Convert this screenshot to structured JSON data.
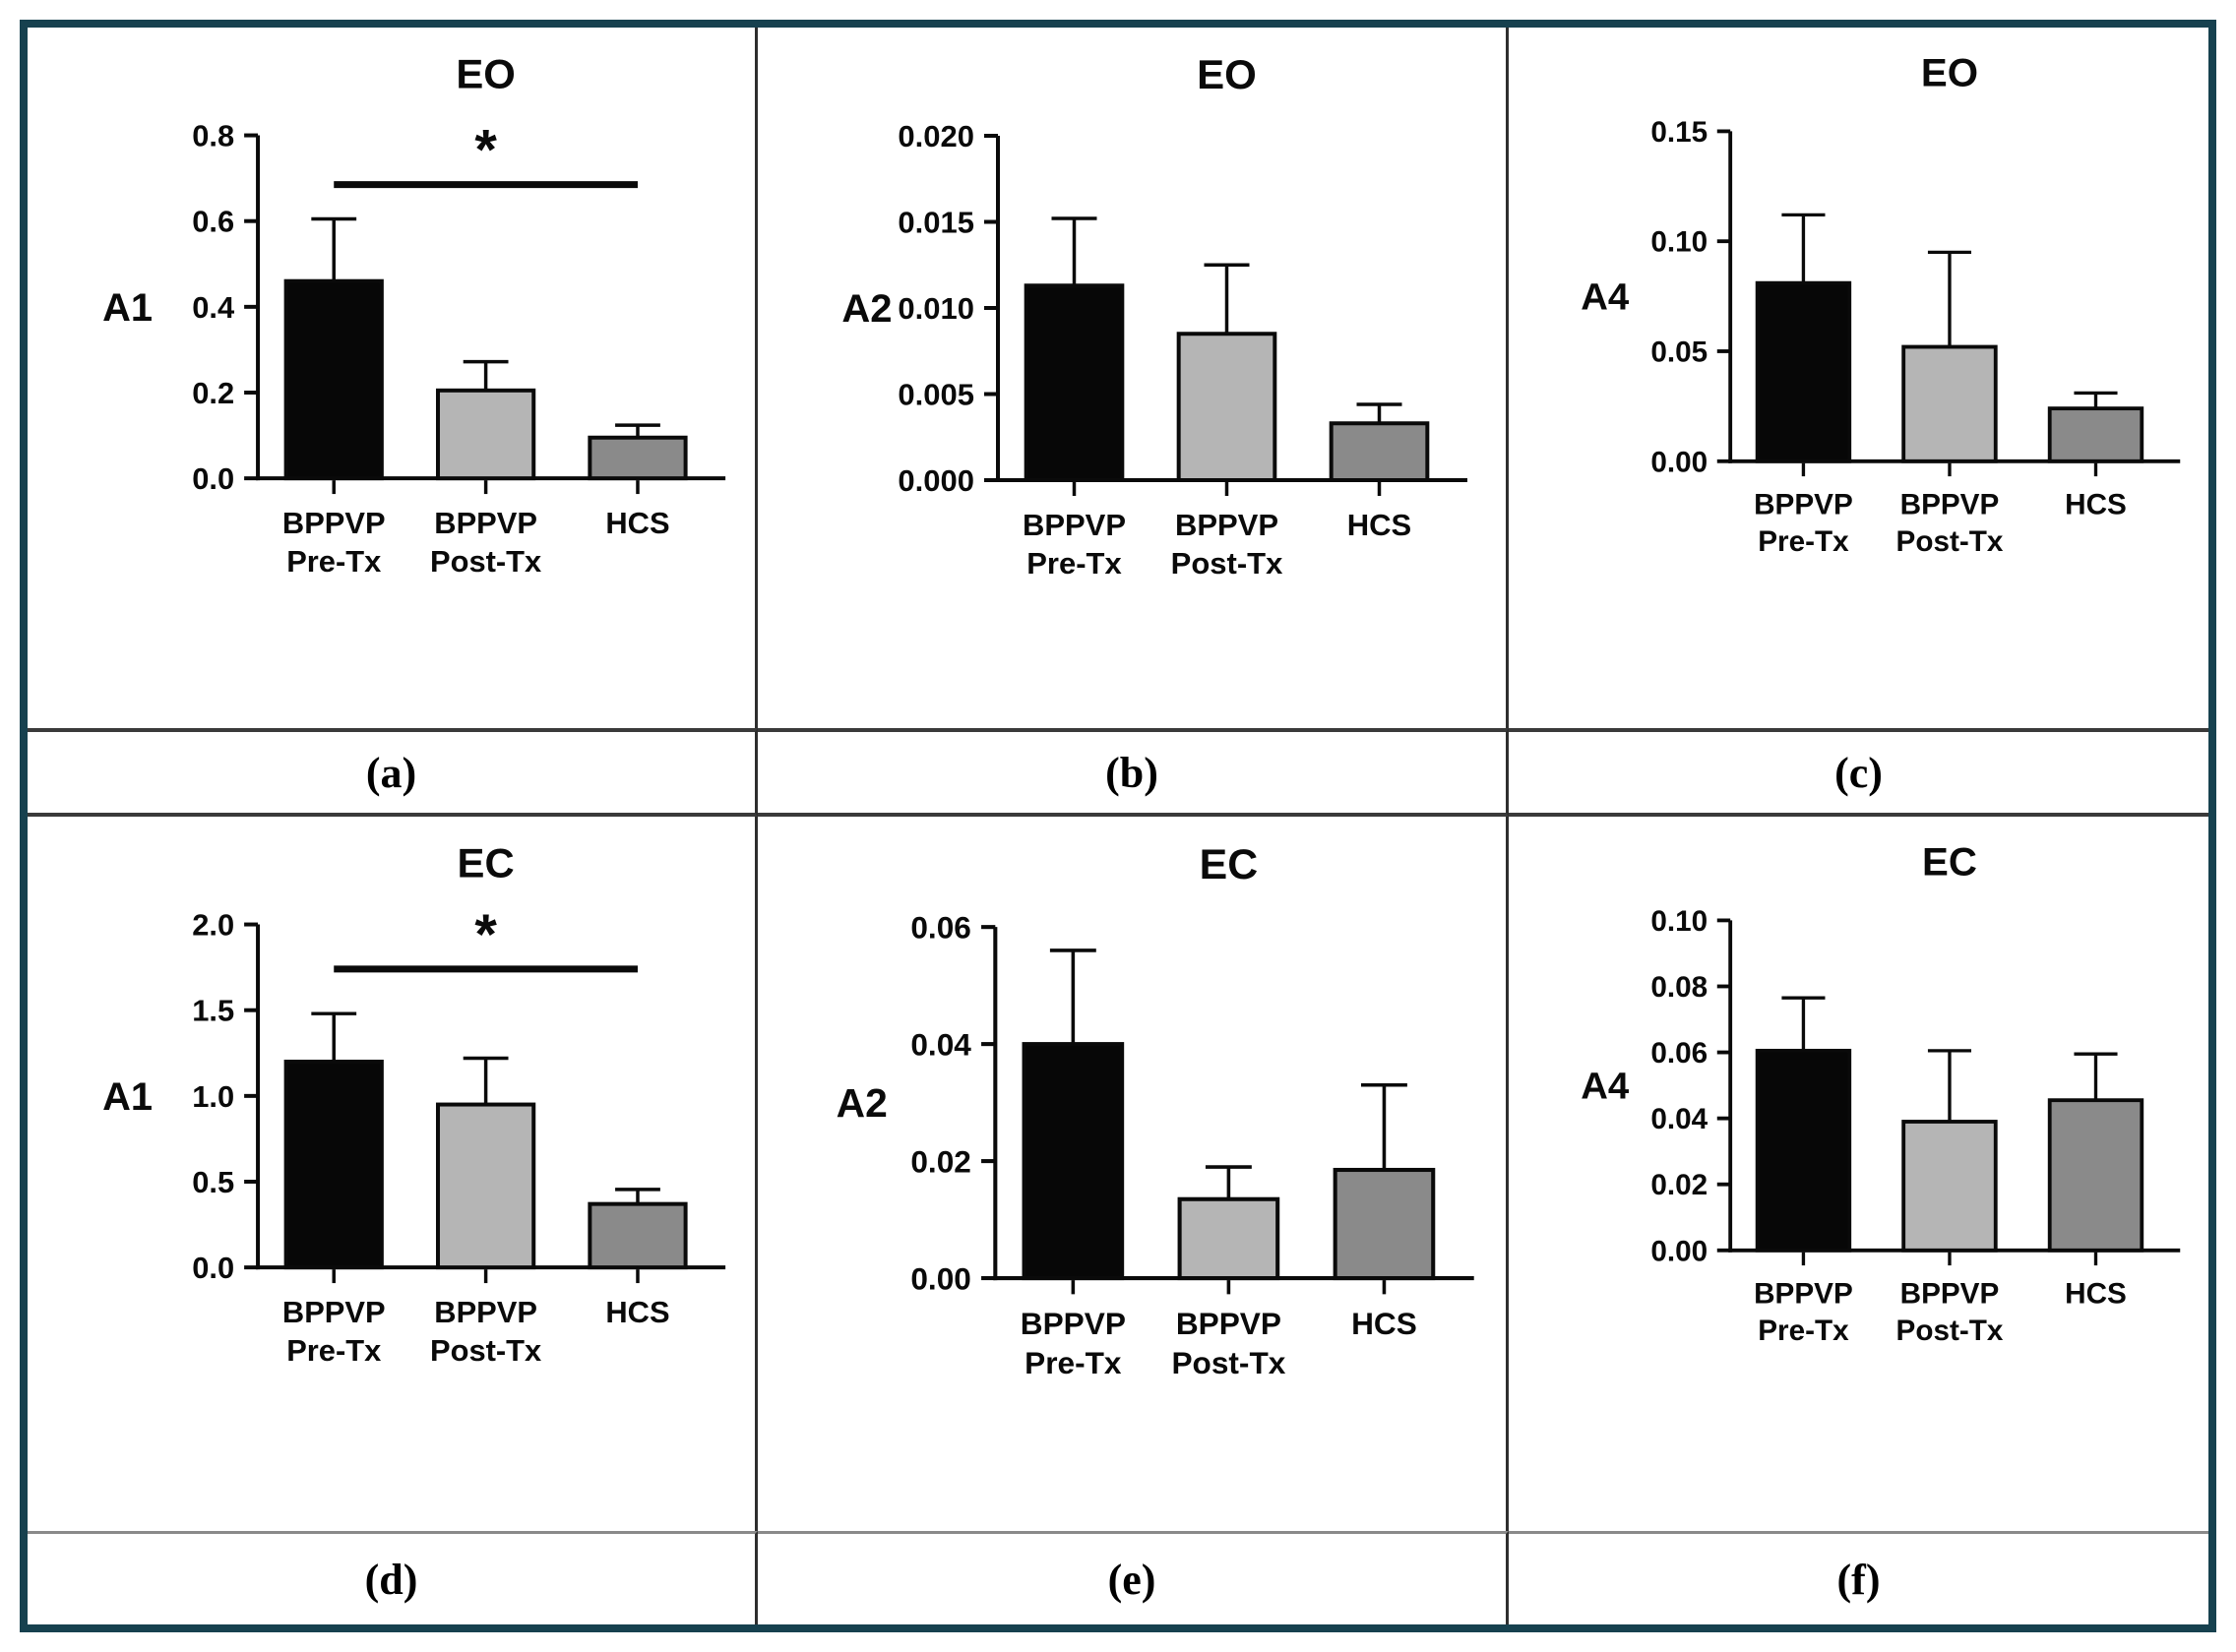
{
  "figure": {
    "border_color": "#17414f",
    "separator_color": "#3a3a3a",
    "axis_color": "#0a0a0a",
    "bar_colors": {
      "bppvp_pre": "#070707",
      "bppvp_post": "#b5b5b5",
      "hcs": "#8a8a8a"
    }
  },
  "charts": [
    {
      "panel_label": "(a)",
      "title": "EO",
      "ylabel": "A1",
      "type": "bar",
      "ylim": [
        0,
        0.8
      ],
      "yticks": [
        {
          "value": 0.0,
          "label": "0.0"
        },
        {
          "value": 0.2,
          "label": "0.2"
        },
        {
          "value": 0.4,
          "label": "0.4"
        },
        {
          "value": 0.6,
          "label": "0.6"
        },
        {
          "value": 0.8,
          "label": "0.8"
        }
      ],
      "categories": [
        [
          "BPPVP",
          "Pre-Tx"
        ],
        [
          "BPPVP",
          "Post-Tx"
        ],
        [
          "HCS"
        ]
      ],
      "bars": [
        {
          "name": "BPPVP Pre-Tx",
          "mean": 0.46,
          "err_top": 0.605,
          "color": "#070707"
        },
        {
          "name": "BPPVP Post-Tx",
          "mean": 0.205,
          "err_top": 0.272,
          "color": "#b5b5b5"
        },
        {
          "name": "HCS",
          "mean": 0.095,
          "err_top": 0.124,
          "color": "#8a8a8a"
        }
      ],
      "significance": {
        "from": 0,
        "to": 2,
        "y": 0.685,
        "label": "*"
      }
    },
    {
      "panel_label": "(b)",
      "title": "EO",
      "ylabel": "A2",
      "type": "bar",
      "ylim": [
        0,
        0.02
      ],
      "yticks": [
        {
          "value": 0.0,
          "label": "0.000"
        },
        {
          "value": 0.005,
          "label": "0.005"
        },
        {
          "value": 0.01,
          "label": "0.010"
        },
        {
          "value": 0.015,
          "label": "0.015"
        },
        {
          "value": 0.02,
          "label": "0.020"
        }
      ],
      "categories": [
        [
          "BPPVP",
          "Pre-Tx"
        ],
        [
          "BPPVP",
          "Post-Tx"
        ],
        [
          "HCS"
        ]
      ],
      "bars": [
        {
          "name": "BPPVP Pre-Tx",
          "mean": 0.0113,
          "err_top": 0.0152,
          "color": "#070707"
        },
        {
          "name": "BPPVP Post-Tx",
          "mean": 0.0085,
          "err_top": 0.0125,
          "color": "#b5b5b5"
        },
        {
          "name": "HCS",
          "mean": 0.0033,
          "err_top": 0.0044,
          "color": "#8a8a8a"
        }
      ],
      "significance": null
    },
    {
      "panel_label": "(c)",
      "title": "EO",
      "ylabel": "A4",
      "type": "bar",
      "ylim": [
        0,
        0.15
      ],
      "yticks": [
        {
          "value": 0.0,
          "label": "0.00"
        },
        {
          "value": 0.05,
          "label": "0.05"
        },
        {
          "value": 0.1,
          "label": "0.10"
        },
        {
          "value": 0.15,
          "label": "0.15"
        }
      ],
      "categories": [
        [
          "BPPVP",
          "Pre-Tx"
        ],
        [
          "BPPVP",
          "Post-Tx"
        ],
        [
          "HCS"
        ]
      ],
      "bars": [
        {
          "name": "BPPVP Pre-Tx",
          "mean": 0.081,
          "err_top": 0.112,
          "color": "#070707"
        },
        {
          "name": "BPPVP Post-Tx",
          "mean": 0.052,
          "err_top": 0.095,
          "color": "#b5b5b5"
        },
        {
          "name": "HCS",
          "mean": 0.024,
          "err_top": 0.031,
          "color": "#8a8a8a"
        }
      ],
      "significance": null
    },
    {
      "panel_label": "(d)",
      "title": "EC",
      "ylabel": "A1",
      "type": "bar",
      "ylim": [
        0,
        2.0
      ],
      "yticks": [
        {
          "value": 0.0,
          "label": "0.0"
        },
        {
          "value": 0.5,
          "label": "0.5"
        },
        {
          "value": 1.0,
          "label": "1.0"
        },
        {
          "value": 1.5,
          "label": "1.5"
        },
        {
          "value": 2.0,
          "label": "2.0"
        }
      ],
      "categories": [
        [
          "BPPVP",
          "Pre-Tx"
        ],
        [
          "BPPVP",
          "Post-Tx"
        ],
        [
          "HCS"
        ]
      ],
      "bars": [
        {
          "name": "BPPVP Pre-Tx",
          "mean": 1.2,
          "err_top": 1.48,
          "color": "#070707"
        },
        {
          "name": "BPPVP Post-Tx",
          "mean": 0.95,
          "err_top": 1.22,
          "color": "#b5b5b5"
        },
        {
          "name": "HCS",
          "mean": 0.37,
          "err_top": 0.455,
          "color": "#8a8a8a"
        }
      ],
      "significance": {
        "from": 0,
        "to": 2,
        "y": 1.74,
        "label": "*"
      }
    },
    {
      "panel_label": "(e)",
      "title": "EC",
      "ylabel": "A2",
      "type": "bar",
      "ylim": [
        0,
        0.06
      ],
      "yticks": [
        {
          "value": 0.0,
          "label": "0.00"
        },
        {
          "value": 0.02,
          "label": "0.02"
        },
        {
          "value": 0.04,
          "label": "0.04"
        },
        {
          "value": 0.06,
          "label": "0.06"
        }
      ],
      "categories": [
        [
          "BPPVP",
          "Pre-Tx"
        ],
        [
          "BPPVP",
          "Post-Tx"
        ],
        [
          "HCS"
        ]
      ],
      "bars": [
        {
          "name": "BPPVP Pre-Tx",
          "mean": 0.04,
          "err_top": 0.056,
          "color": "#070707"
        },
        {
          "name": "BPPVP Post-Tx",
          "mean": 0.0135,
          "err_top": 0.019,
          "color": "#b5b5b5"
        },
        {
          "name": "HCS",
          "mean": 0.0185,
          "err_top": 0.033,
          "color": "#8a8a8a"
        }
      ],
      "significance": null
    },
    {
      "panel_label": "(f)",
      "title": "EC",
      "ylabel": "A4",
      "type": "bar",
      "ylim": [
        0,
        0.1
      ],
      "yticks": [
        {
          "value": 0.0,
          "label": "0.00"
        },
        {
          "value": 0.02,
          "label": "0.02"
        },
        {
          "value": 0.04,
          "label": "0.04"
        },
        {
          "value": 0.06,
          "label": "0.06"
        },
        {
          "value": 0.08,
          "label": "0.08"
        },
        {
          "value": 0.1,
          "label": "0.10"
        }
      ],
      "categories": [
        [
          "BPPVP",
          "Pre-Tx"
        ],
        [
          "BPPVP",
          "Post-Tx"
        ],
        [
          "HCS"
        ]
      ],
      "bars": [
        {
          "name": "BPPVP Pre-Tx",
          "mean": 0.0605,
          "err_top": 0.0765,
          "color": "#070707"
        },
        {
          "name": "BPPVP Post-Tx",
          "mean": 0.039,
          "err_top": 0.0605,
          "color": "#b5b5b5"
        },
        {
          "name": "HCS",
          "mean": 0.0455,
          "err_top": 0.0595,
          "color": "#8a8a8a"
        }
      ],
      "significance": null
    }
  ],
  "chart_data": {
    "type": "bar",
    "note": "Six-panel grouped figure; panels (a)-(f); see charts array for per-panel series",
    "categories": [
      "BPPVP Pre-Tx",
      "BPPVP Post-Tx",
      "HCS"
    ],
    "panels": [
      {
        "panel": "(a)",
        "title": "EO",
        "ylabel": "A1",
        "ylim": [
          0,
          0.8
        ],
        "values": [
          0.46,
          0.205,
          0.095
        ],
        "error_tops": [
          0.605,
          0.272,
          0.124
        ],
        "significant_pair": [
          "BPPVP Pre-Tx",
          "HCS"
        ]
      },
      {
        "panel": "(b)",
        "title": "EO",
        "ylabel": "A2",
        "ylim": [
          0,
          0.02
        ],
        "values": [
          0.0113,
          0.0085,
          0.0033
        ],
        "error_tops": [
          0.0152,
          0.0125,
          0.0044
        ],
        "significant_pair": null
      },
      {
        "panel": "(c)",
        "title": "EO",
        "ylabel": "A4",
        "ylim": [
          0,
          0.15
        ],
        "values": [
          0.081,
          0.052,
          0.024
        ],
        "error_tops": [
          0.112,
          0.095,
          0.031
        ],
        "significant_pair": null
      },
      {
        "panel": "(d)",
        "title": "EC",
        "ylabel": "A1",
        "ylim": [
          0,
          2.0
        ],
        "values": [
          1.2,
          0.95,
          0.37
        ],
        "error_tops": [
          1.48,
          1.22,
          0.455
        ],
        "significant_pair": [
          "BPPVP Pre-Tx",
          "HCS"
        ]
      },
      {
        "panel": "(e)",
        "title": "EC",
        "ylabel": "A2",
        "ylim": [
          0,
          0.06
        ],
        "values": [
          0.04,
          0.0135,
          0.0185
        ],
        "error_tops": [
          0.056,
          0.019,
          0.033
        ],
        "significant_pair": null
      },
      {
        "panel": "(f)",
        "title": "EC",
        "ylabel": "A4",
        "ylim": [
          0,
          0.1
        ],
        "values": [
          0.0605,
          0.039,
          0.0455
        ],
        "error_tops": [
          0.0765,
          0.0605,
          0.0595
        ],
        "significant_pair": null
      }
    ]
  }
}
